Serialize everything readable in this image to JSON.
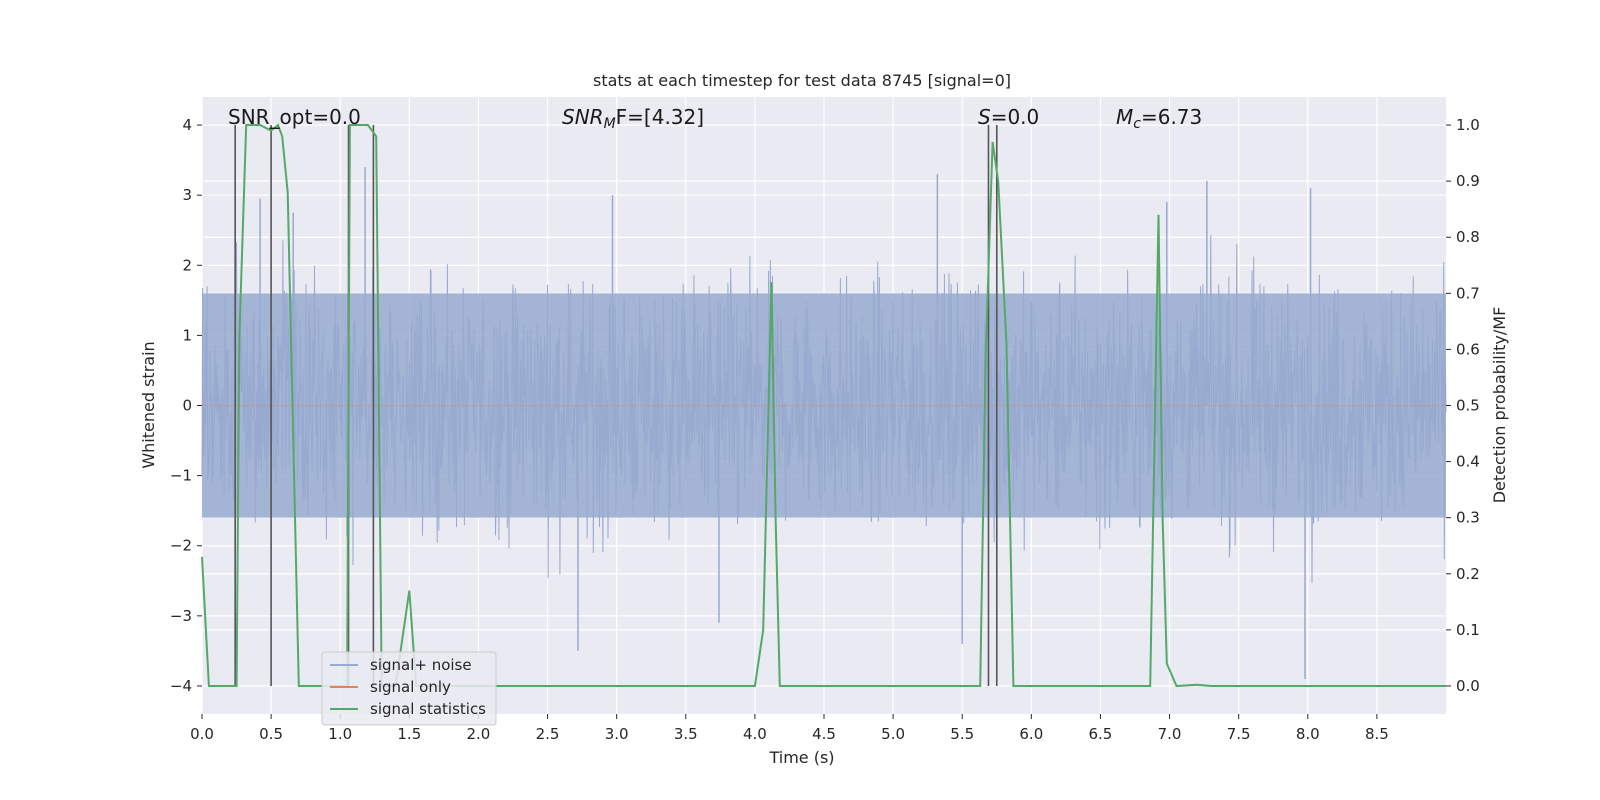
{
  "chart_data": {
    "type": "line",
    "title": "stats at each timestep for test data 8745 [signal=0]",
    "xlabel": "Time (s)",
    "ylabel_left": "Whitened strain",
    "ylabel_right": "Detection probability/MF",
    "xlim": [
      0,
      9.0
    ],
    "ylim_left": [
      -4.4,
      4.4
    ],
    "ylim_right": [
      -0.05,
      1.05
    ],
    "xticks": [
      "0.0",
      "0.5",
      "1.0",
      "1.5",
      "2.0",
      "2.5",
      "3.0",
      "3.5",
      "4.0",
      "4.5",
      "5.0",
      "5.5",
      "6.0",
      "6.5",
      "7.0",
      "7.5",
      "8.0",
      "8.5"
    ],
    "yticks_left": [
      "−4",
      "−3",
      "−2",
      "−1",
      "0",
      "1",
      "2",
      "3",
      "4"
    ],
    "yticks_right": [
      "0.0",
      "0.1",
      "0.2",
      "0.3",
      "0.4",
      "0.5",
      "0.6",
      "0.7",
      "0.8",
      "0.9",
      "1.0"
    ],
    "grid": true,
    "background": "#eaeaf2",
    "annotations": {
      "snr_opt": "SNR_opt=0.0",
      "snr_mf_prefix": "SNR",
      "snr_mf_sub": "M",
      "snr_mf_suffix": "F=[4.32]",
      "s_prefix": "S",
      "s_suffix": "=0.0",
      "mc_prefix": "M",
      "mc_sub": "c",
      "mc_suffix": "=6.73"
    },
    "legend": {
      "placement": "lower-left",
      "entries": [
        "signal+ noise",
        "signal only",
        "signal statistics"
      ]
    },
    "colors": {
      "noise": "#98aad0",
      "signal_only": "#dd8452",
      "statistics": "#55a868",
      "markers": "#555555"
    },
    "series": [
      {
        "name": "signal+ noise",
        "axis": "left",
        "description_level": "whitened strain noise, roughly gaussian with amplitude ~1.6 and spikes up to ~3.4",
        "band": 1.6,
        "spikes": [
          {
            "x": 1.18,
            "y": 3.4
          },
          {
            "x": 5.32,
            "y": 3.3
          },
          {
            "x": 0.42,
            "y": 2.95
          },
          {
            "x": 0.66,
            "y": 2.75
          },
          {
            "x": 2.97,
            "y": 3.0
          },
          {
            "x": 8.02,
            "y": 3.1
          },
          {
            "x": 7.27,
            "y": 3.2
          },
          {
            "x": 6.98,
            "y": 2.9
          },
          {
            "x": 2.72,
            "y": -3.5
          },
          {
            "x": 5.5,
            "y": -3.4
          },
          {
            "x": 7.98,
            "y": -3.9
          },
          {
            "x": 3.74,
            "y": -3.1
          }
        ]
      },
      {
        "name": "signal only",
        "axis": "left",
        "x": [
          0.0,
          9.0
        ],
        "y": [
          0.0,
          0.0
        ]
      },
      {
        "name": "signal statistics",
        "axis": "right",
        "x": [
          0.0,
          0.05,
          0.25,
          0.27,
          0.32,
          0.36,
          0.42,
          0.5,
          0.55,
          0.58,
          0.62,
          0.7,
          1.0,
          1.05,
          1.07,
          1.12,
          1.2,
          1.26,
          1.3,
          1.33,
          1.4,
          1.5,
          1.55,
          1.6,
          4.0,
          4.06,
          4.12,
          4.15,
          4.18,
          4.22,
          4.5,
          4.6,
          5.0,
          5.1,
          5.3,
          5.4,
          5.5,
          5.63,
          5.67,
          5.72,
          5.76,
          5.82,
          5.87,
          5.92,
          6.0,
          6.8,
          6.86,
          6.92,
          6.95,
          6.98,
          7.05,
          7.2,
          7.3,
          9.0
        ],
        "y": [
          0.23,
          0.0,
          0.0,
          0.62,
          1.0,
          1.0,
          1.0,
          0.99,
          1.0,
          0.98,
          0.88,
          0.0,
          0.0,
          0.0,
          1.0,
          1.0,
          1.0,
          0.98,
          0.0,
          0.0,
          0.0,
          0.17,
          0.0,
          0.0,
          0.0,
          0.1,
          0.72,
          0.3,
          0.0,
          0.0,
          0.0,
          0.0,
          0.0,
          0.0,
          0.0,
          0.0,
          0.0,
          0.0,
          0.59,
          0.97,
          0.9,
          0.61,
          0.0,
          0.0,
          0.0,
          0.0,
          0.0,
          0.84,
          0.3,
          0.04,
          0.0,
          0.002,
          0.0,
          0.0
        ]
      }
    ],
    "vertical_markers": [
      0.24,
      0.5,
      1.06,
      1.24,
      5.69,
      5.75
    ]
  }
}
